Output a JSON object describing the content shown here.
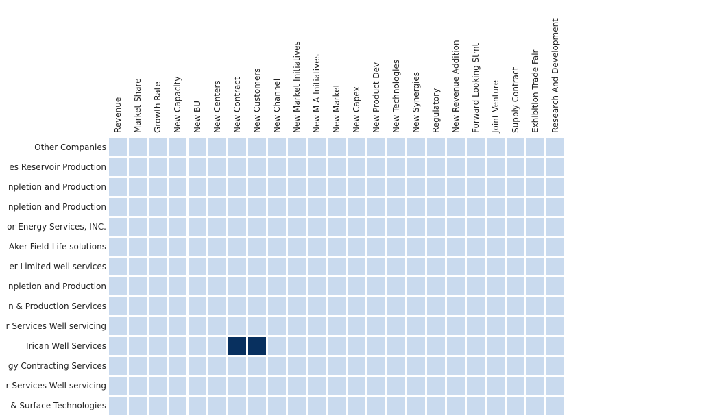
{
  "chart_data": {
    "type": "heatmap",
    "title": "",
    "xlabel": "",
    "ylabel": "",
    "columns": [
      "Revenue",
      "Market Share",
      "Growth Rate",
      "New Capacity",
      "New BU",
      "New Centers",
      "New Contract",
      "New Customers",
      "New Channel",
      "New Market Initiatives",
      "New M A Initiatives",
      "New Market",
      "New Capex",
      "New Product Dev",
      "New Technologies",
      "New Synergies",
      "Regulatory",
      "New Revenue Addition",
      "Forward Looking Stmt",
      "Joint Venture",
      "Supply Contract",
      "Exhibition Trade Fair",
      "Research And Development"
    ],
    "rows": [
      "Other Companies",
      "es Reservoir Production",
      "npletion and Production",
      "npletion and Production",
      "or Energy Services, INC.",
      "Aker Field-Life solutions",
      "er Limited well services",
      "npletion and Production",
      "n & Production Services",
      "r Services Well servicing",
      "Trican Well Services",
      "gy Contracting Services",
      "r Services Well servicing",
      "& Surface Technologies"
    ],
    "values": [
      [
        0,
        0,
        0,
        0,
        0,
        0,
        0,
        0,
        0,
        0,
        0,
        0,
        0,
        0,
        0,
        0,
        0,
        0,
        0,
        0,
        0,
        0,
        0
      ],
      [
        0,
        0,
        0,
        0,
        0,
        0,
        0,
        0,
        0,
        0,
        0,
        0,
        0,
        0,
        0,
        0,
        0,
        0,
        0,
        0,
        0,
        0,
        0
      ],
      [
        0,
        0,
        0,
        0,
        0,
        0,
        0,
        0,
        0,
        0,
        0,
        0,
        0,
        0,
        0,
        0,
        0,
        0,
        0,
        0,
        0,
        0,
        0
      ],
      [
        0,
        0,
        0,
        0,
        0,
        0,
        0,
        0,
        0,
        0,
        0,
        0,
        0,
        0,
        0,
        0,
        0,
        0,
        0,
        0,
        0,
        0,
        0
      ],
      [
        0,
        0,
        0,
        0,
        0,
        0,
        0,
        0,
        0,
        0,
        0,
        0,
        0,
        0,
        0,
        0,
        0,
        0,
        0,
        0,
        0,
        0,
        0
      ],
      [
        0,
        0,
        0,
        0,
        0,
        0,
        0,
        0,
        0,
        0,
        0,
        0,
        0,
        0,
        0,
        0,
        0,
        0,
        0,
        0,
        0,
        0,
        0
      ],
      [
        0,
        0,
        0,
        0,
        0,
        0,
        0,
        0,
        0,
        0,
        0,
        0,
        0,
        0,
        0,
        0,
        0,
        0,
        0,
        0,
        0,
        0,
        0
      ],
      [
        0,
        0,
        0,
        0,
        0,
        0,
        0,
        0,
        0,
        0,
        0,
        0,
        0,
        0,
        0,
        0,
        0,
        0,
        0,
        0,
        0,
        0,
        0
      ],
      [
        0,
        0,
        0,
        0,
        0,
        0,
        0,
        0,
        0,
        0,
        0,
        0,
        0,
        0,
        0,
        0,
        0,
        0,
        0,
        0,
        0,
        0,
        0
      ],
      [
        0,
        0,
        0,
        0,
        0,
        0,
        0,
        0,
        0,
        0,
        0,
        0,
        0,
        0,
        0,
        0,
        0,
        0,
        0,
        0,
        0,
        0,
        0
      ],
      [
        0,
        0,
        0,
        0,
        0,
        0,
        1,
        1,
        0,
        0,
        0,
        0,
        0,
        0,
        0,
        0,
        0,
        0,
        0,
        0,
        0,
        0,
        0
      ],
      [
        0,
        0,
        0,
        0,
        0,
        0,
        0,
        0,
        0,
        0,
        0,
        0,
        0,
        0,
        0,
        0,
        0,
        0,
        0,
        0,
        0,
        0,
        0
      ],
      [
        0,
        0,
        0,
        0,
        0,
        0,
        0,
        0,
        0,
        0,
        0,
        0,
        0,
        0,
        0,
        0,
        0,
        0,
        0,
        0,
        0,
        0,
        0
      ],
      [
        0,
        0,
        0,
        0,
        0,
        0,
        0,
        0,
        0,
        0,
        0,
        0,
        0,
        0,
        0,
        0,
        0,
        0,
        0,
        0,
        0,
        0,
        0
      ]
    ],
    "color_low": "#c9daee",
    "color_high": "#08305f",
    "legend": "none",
    "grid": false
  }
}
